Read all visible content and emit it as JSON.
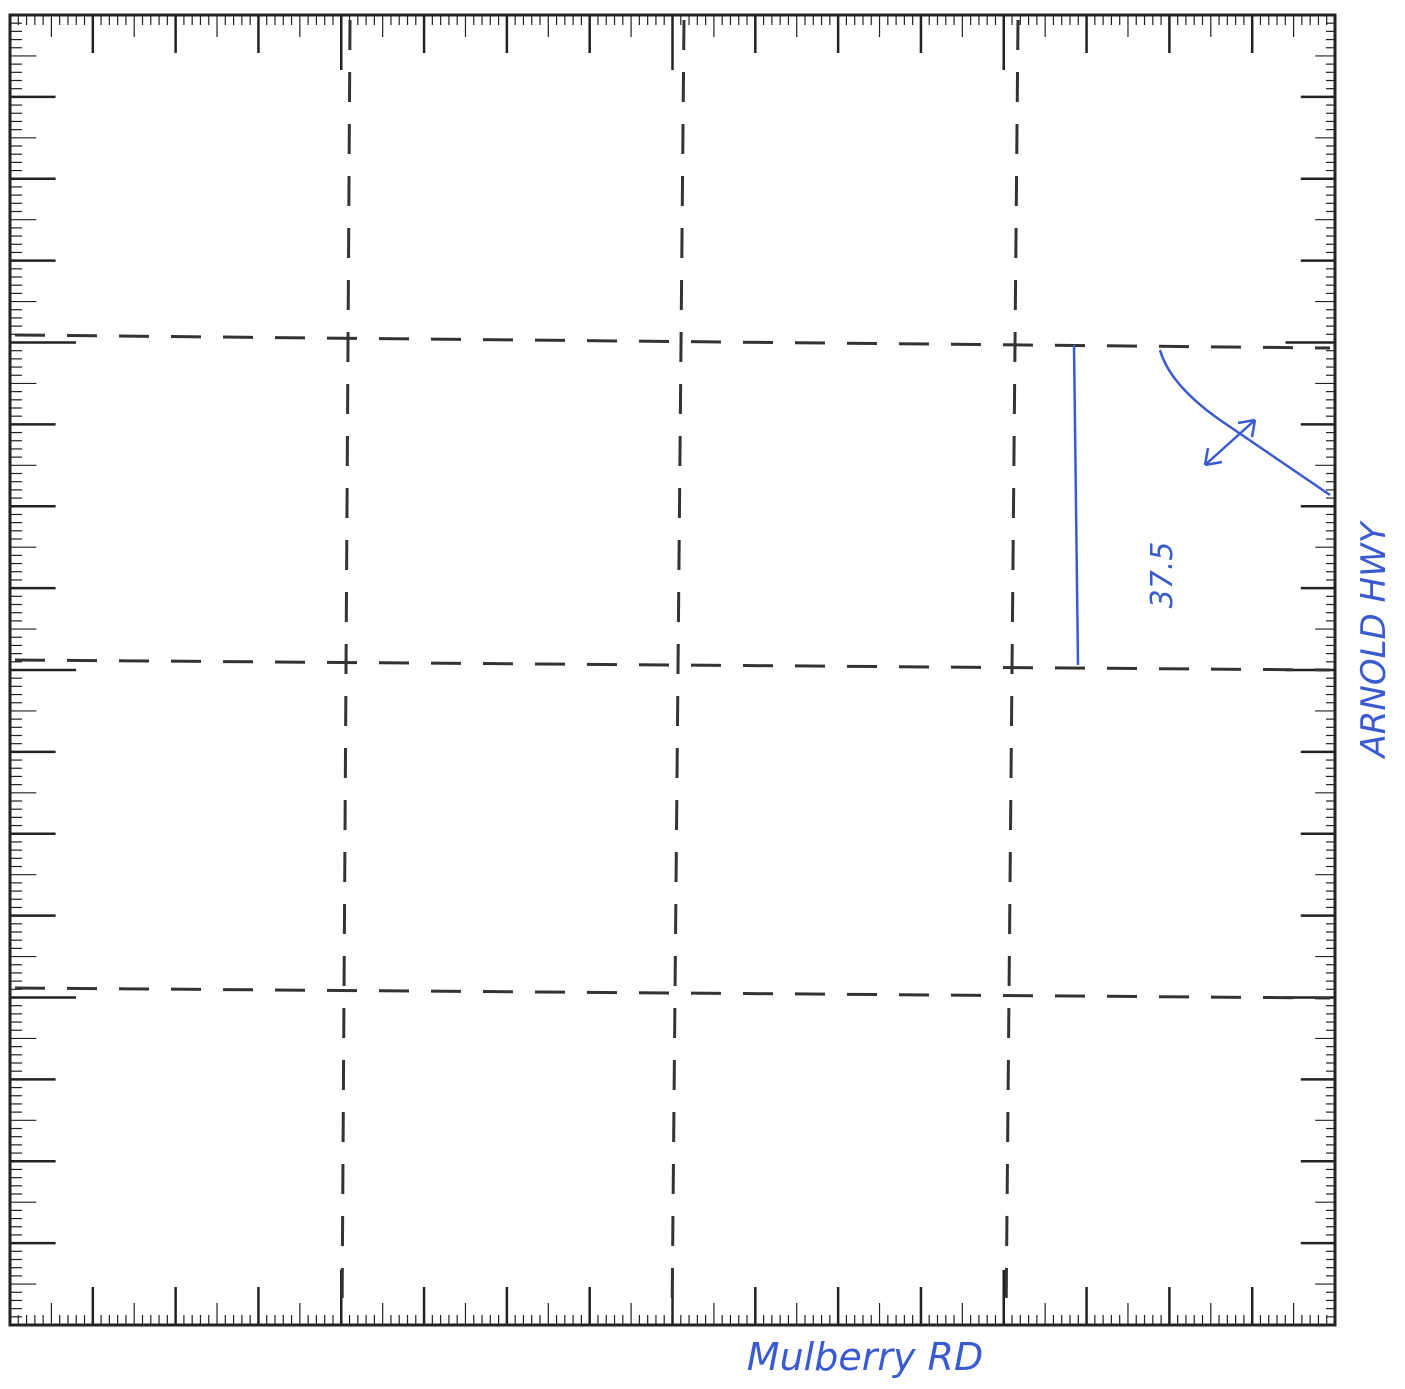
{
  "map": {
    "road_bottom": "Mulberry RD",
    "road_right": "ARNOLD HWY",
    "dimension": "37.5"
  }
}
